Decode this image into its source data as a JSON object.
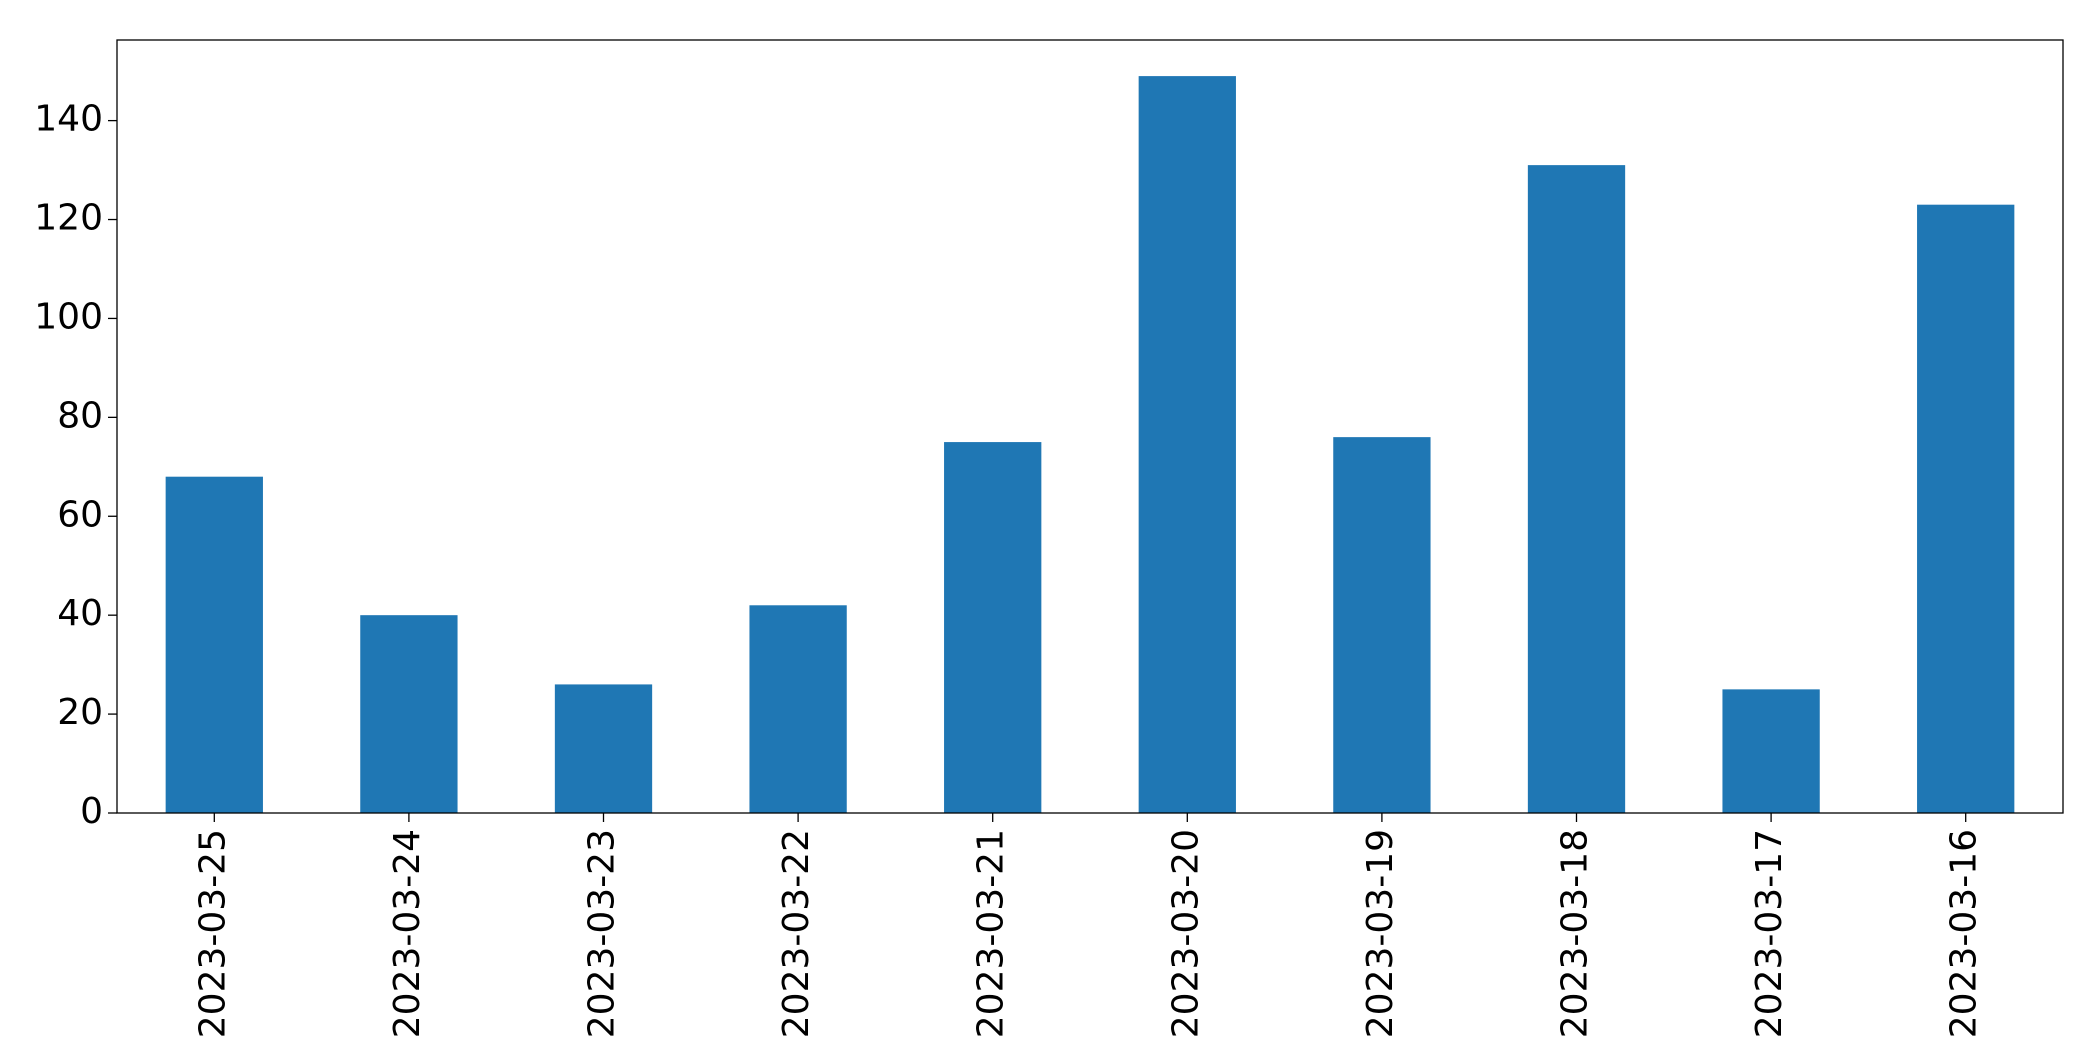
{
  "chart_data": {
    "type": "bar",
    "categories": [
      "2023-03-25",
      "2023-03-24",
      "2023-03-23",
      "2023-03-22",
      "2023-03-21",
      "2023-03-20",
      "2023-03-19",
      "2023-03-18",
      "2023-03-17",
      "2023-03-16"
    ],
    "values": [
      68,
      40,
      26,
      42,
      75,
      149,
      76,
      131,
      25,
      123
    ],
    "color": "#1f77b4",
    "ylim": [
      0,
      156.3
    ],
    "yticks": [
      0,
      20,
      40,
      60,
      80,
      100,
      120,
      140
    ],
    "grid": false
  }
}
